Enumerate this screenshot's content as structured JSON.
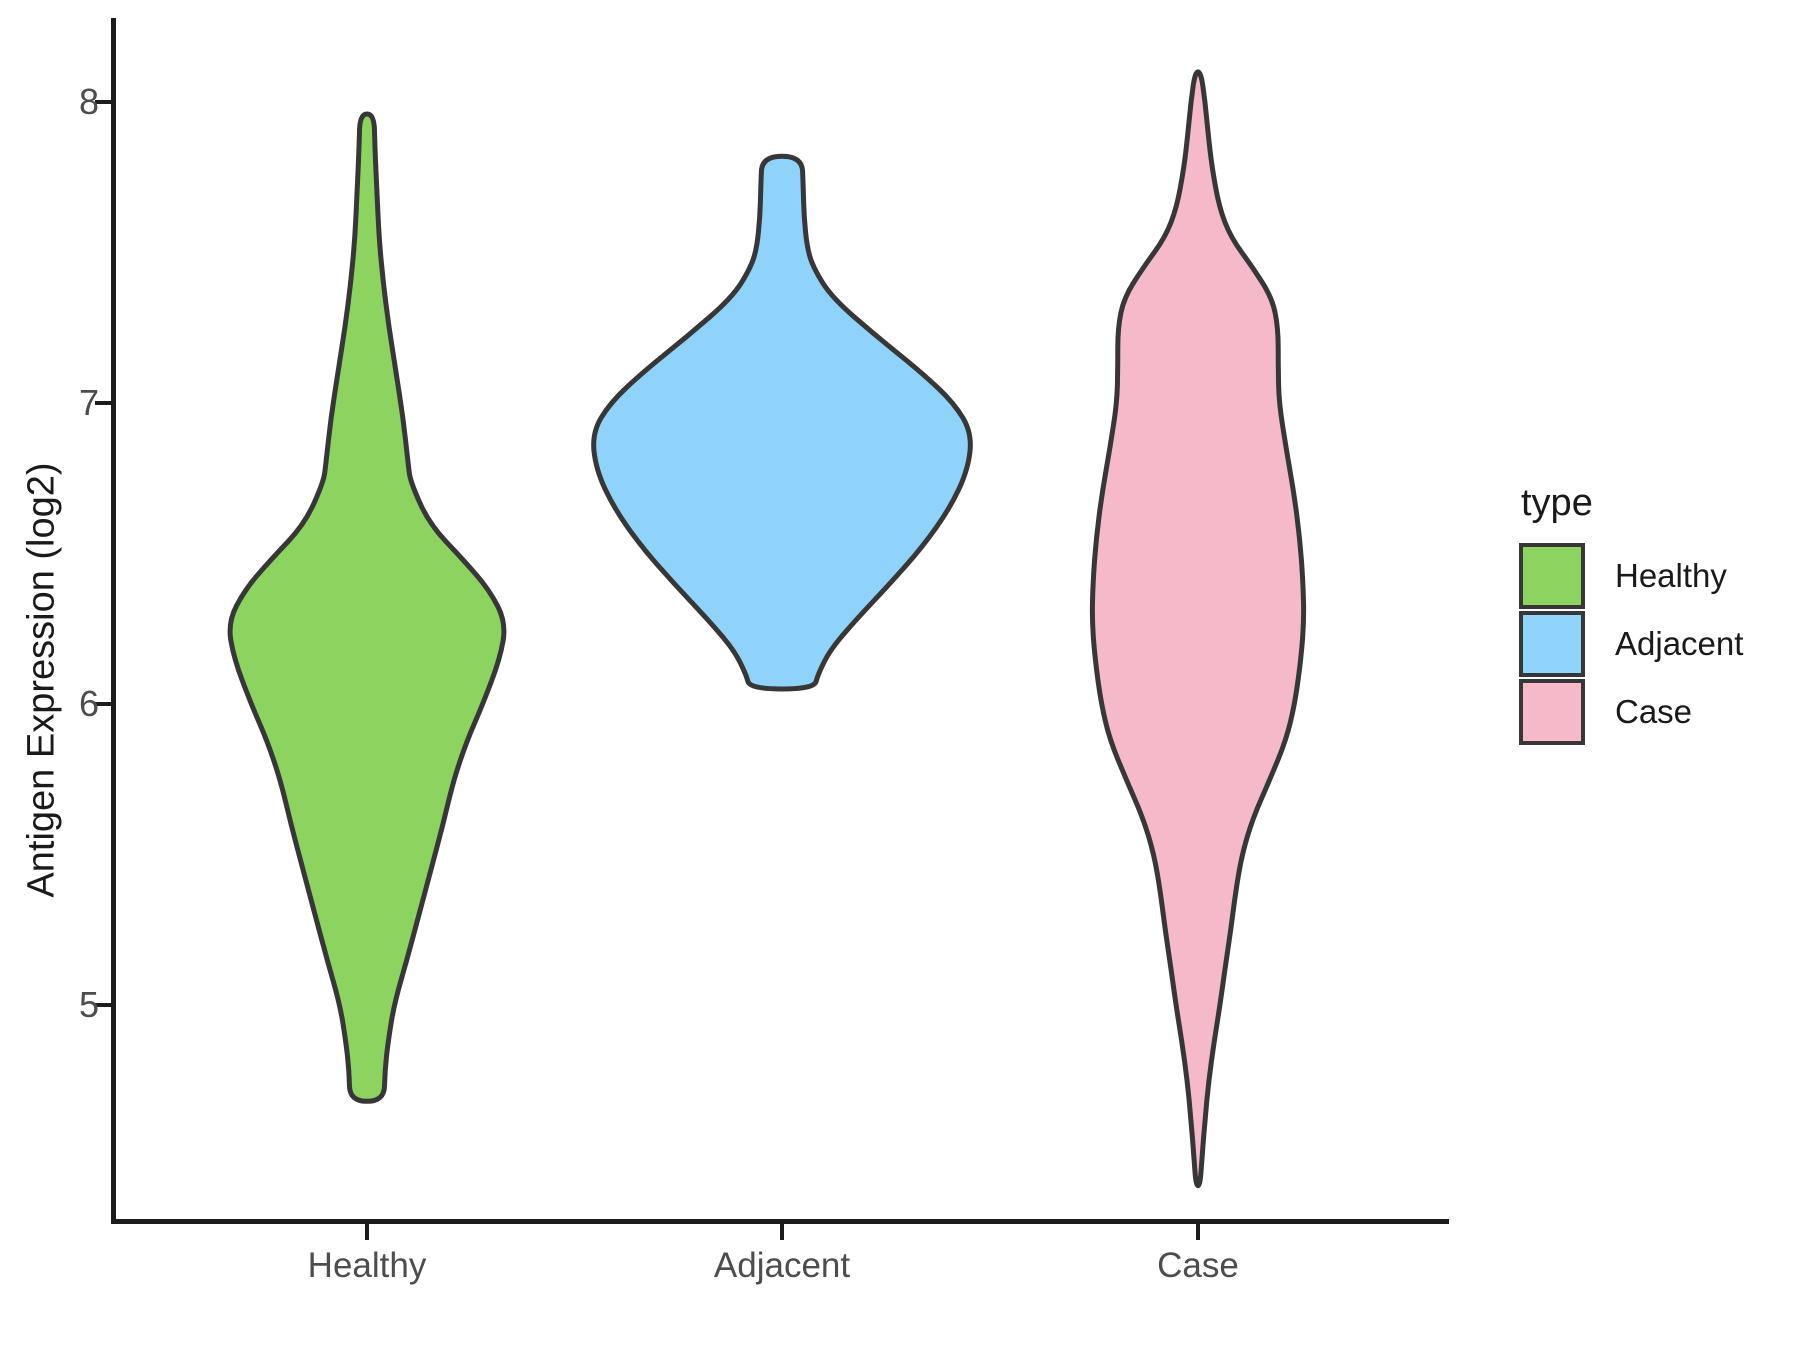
{
  "figure": {
    "background": "#ffffff"
  },
  "y_axis": {
    "title": "Antigen Expression (log2)",
    "ticks": [
      {
        "label": "8",
        "value": 8
      },
      {
        "label": "7",
        "value": 7
      },
      {
        "label": "6",
        "value": 6
      },
      {
        "label": "5",
        "value": 5
      }
    ],
    "axis_color": "#1c1c1c",
    "tick_label_color": "#4d4d4d"
  },
  "x_axis": {
    "categories": [
      "Healthy",
      "Adjacent",
      "Case"
    ],
    "tick_label_color": "#4d4d4d"
  },
  "legend": {
    "title": "type",
    "entries": [
      {
        "label": "Healthy",
        "color": "#8CD35F"
      },
      {
        "label": "Adjacent",
        "color": "#8FD3FA"
      },
      {
        "label": "Case",
        "color": "#F6B9C9"
      }
    ]
  },
  "chart_data": {
    "type": "violin",
    "title": "",
    "xlabel": "",
    "ylabel": "Antigen Expression (log2)",
    "categories": [
      "Healthy",
      "Adjacent",
      "Case"
    ],
    "y_ticks": [
      5,
      6,
      7,
      8
    ],
    "ylim": [
      4.3,
      8.35
    ],
    "grid": false,
    "legend_position": "right",
    "outline_color": "#373737",
    "outline_width": 5,
    "series": [
      {
        "name": "Healthy",
        "fill": "#8CD35F",
        "min": 4.68,
        "max": 7.96,
        "peak_value": 6.27,
        "peak_half_width": 0.335,
        "flat_top": true,
        "flat_bottom": true,
        "profile": [
          [
            7.96,
            0.017
          ],
          [
            7.85,
            0.019
          ],
          [
            7.7,
            0.024
          ],
          [
            7.55,
            0.029
          ],
          [
            7.4,
            0.039
          ],
          [
            7.25,
            0.053
          ],
          [
            7.1,
            0.07
          ],
          [
            6.95,
            0.087
          ],
          [
            6.8,
            0.099
          ],
          [
            6.74,
            0.104
          ],
          [
            6.6,
            0.149
          ],
          [
            6.48,
            0.231
          ],
          [
            6.38,
            0.294
          ],
          [
            6.27,
            0.335
          ],
          [
            6.15,
            0.32
          ],
          [
            6.0,
            0.279
          ],
          [
            5.88,
            0.241
          ],
          [
            5.75,
            0.209
          ],
          [
            5.6,
            0.183
          ],
          [
            5.45,
            0.154
          ],
          [
            5.3,
            0.125
          ],
          [
            5.15,
            0.096
          ],
          [
            5.0,
            0.065
          ],
          [
            4.88,
            0.051
          ],
          [
            4.78,
            0.043
          ],
          [
            4.68,
            0.041
          ]
        ]
      },
      {
        "name": "Adjacent",
        "fill": "#8FD3FA",
        "min": 6.05,
        "max": 7.82,
        "peak_value": 6.9,
        "peak_half_width": 0.457,
        "flat_top": true,
        "flat_bottom": true,
        "profile": [
          [
            7.82,
            0.048
          ],
          [
            7.72,
            0.051
          ],
          [
            7.62,
            0.053
          ],
          [
            7.52,
            0.06
          ],
          [
            7.45,
            0.075
          ],
          [
            7.35,
            0.12
          ],
          [
            7.22,
            0.229
          ],
          [
            7.1,
            0.337
          ],
          [
            7.0,
            0.414
          ],
          [
            6.9,
            0.457
          ],
          [
            6.78,
            0.448
          ],
          [
            6.65,
            0.404
          ],
          [
            6.52,
            0.337
          ],
          [
            6.4,
            0.26
          ],
          [
            6.28,
            0.178
          ],
          [
            6.18,
            0.116
          ],
          [
            6.1,
            0.087
          ],
          [
            6.05,
            0.077
          ]
        ]
      },
      {
        "name": "Case",
        "fill": "#F6B9C9",
        "min": 4.4,
        "max": 8.1,
        "peak_value": 6.28,
        "peak_half_width": 0.255,
        "flat_top": false,
        "flat_bottom": false,
        "profile": [
          [
            8.1,
            0.007
          ],
          [
            8.0,
            0.017
          ],
          [
            7.9,
            0.024
          ],
          [
            7.78,
            0.034
          ],
          [
            7.65,
            0.051
          ],
          [
            7.55,
            0.079
          ],
          [
            7.45,
            0.132
          ],
          [
            7.35,
            0.178
          ],
          [
            7.25,
            0.193
          ],
          [
            7.12,
            0.193
          ],
          [
            7.0,
            0.195
          ],
          [
            6.85,
            0.212
          ],
          [
            6.7,
            0.231
          ],
          [
            6.55,
            0.245
          ],
          [
            6.4,
            0.253
          ],
          [
            6.28,
            0.255
          ],
          [
            6.15,
            0.248
          ],
          [
            6.0,
            0.233
          ],
          [
            5.88,
            0.212
          ],
          [
            5.75,
            0.173
          ],
          [
            5.62,
            0.132
          ],
          [
            5.5,
            0.106
          ],
          [
            5.38,
            0.091
          ],
          [
            5.25,
            0.079
          ],
          [
            5.12,
            0.065
          ],
          [
            5.0,
            0.053
          ],
          [
            4.88,
            0.039
          ],
          [
            4.75,
            0.026
          ],
          [
            4.62,
            0.017
          ],
          [
            4.5,
            0.01
          ],
          [
            4.4,
            0.005
          ]
        ]
      }
    ]
  }
}
